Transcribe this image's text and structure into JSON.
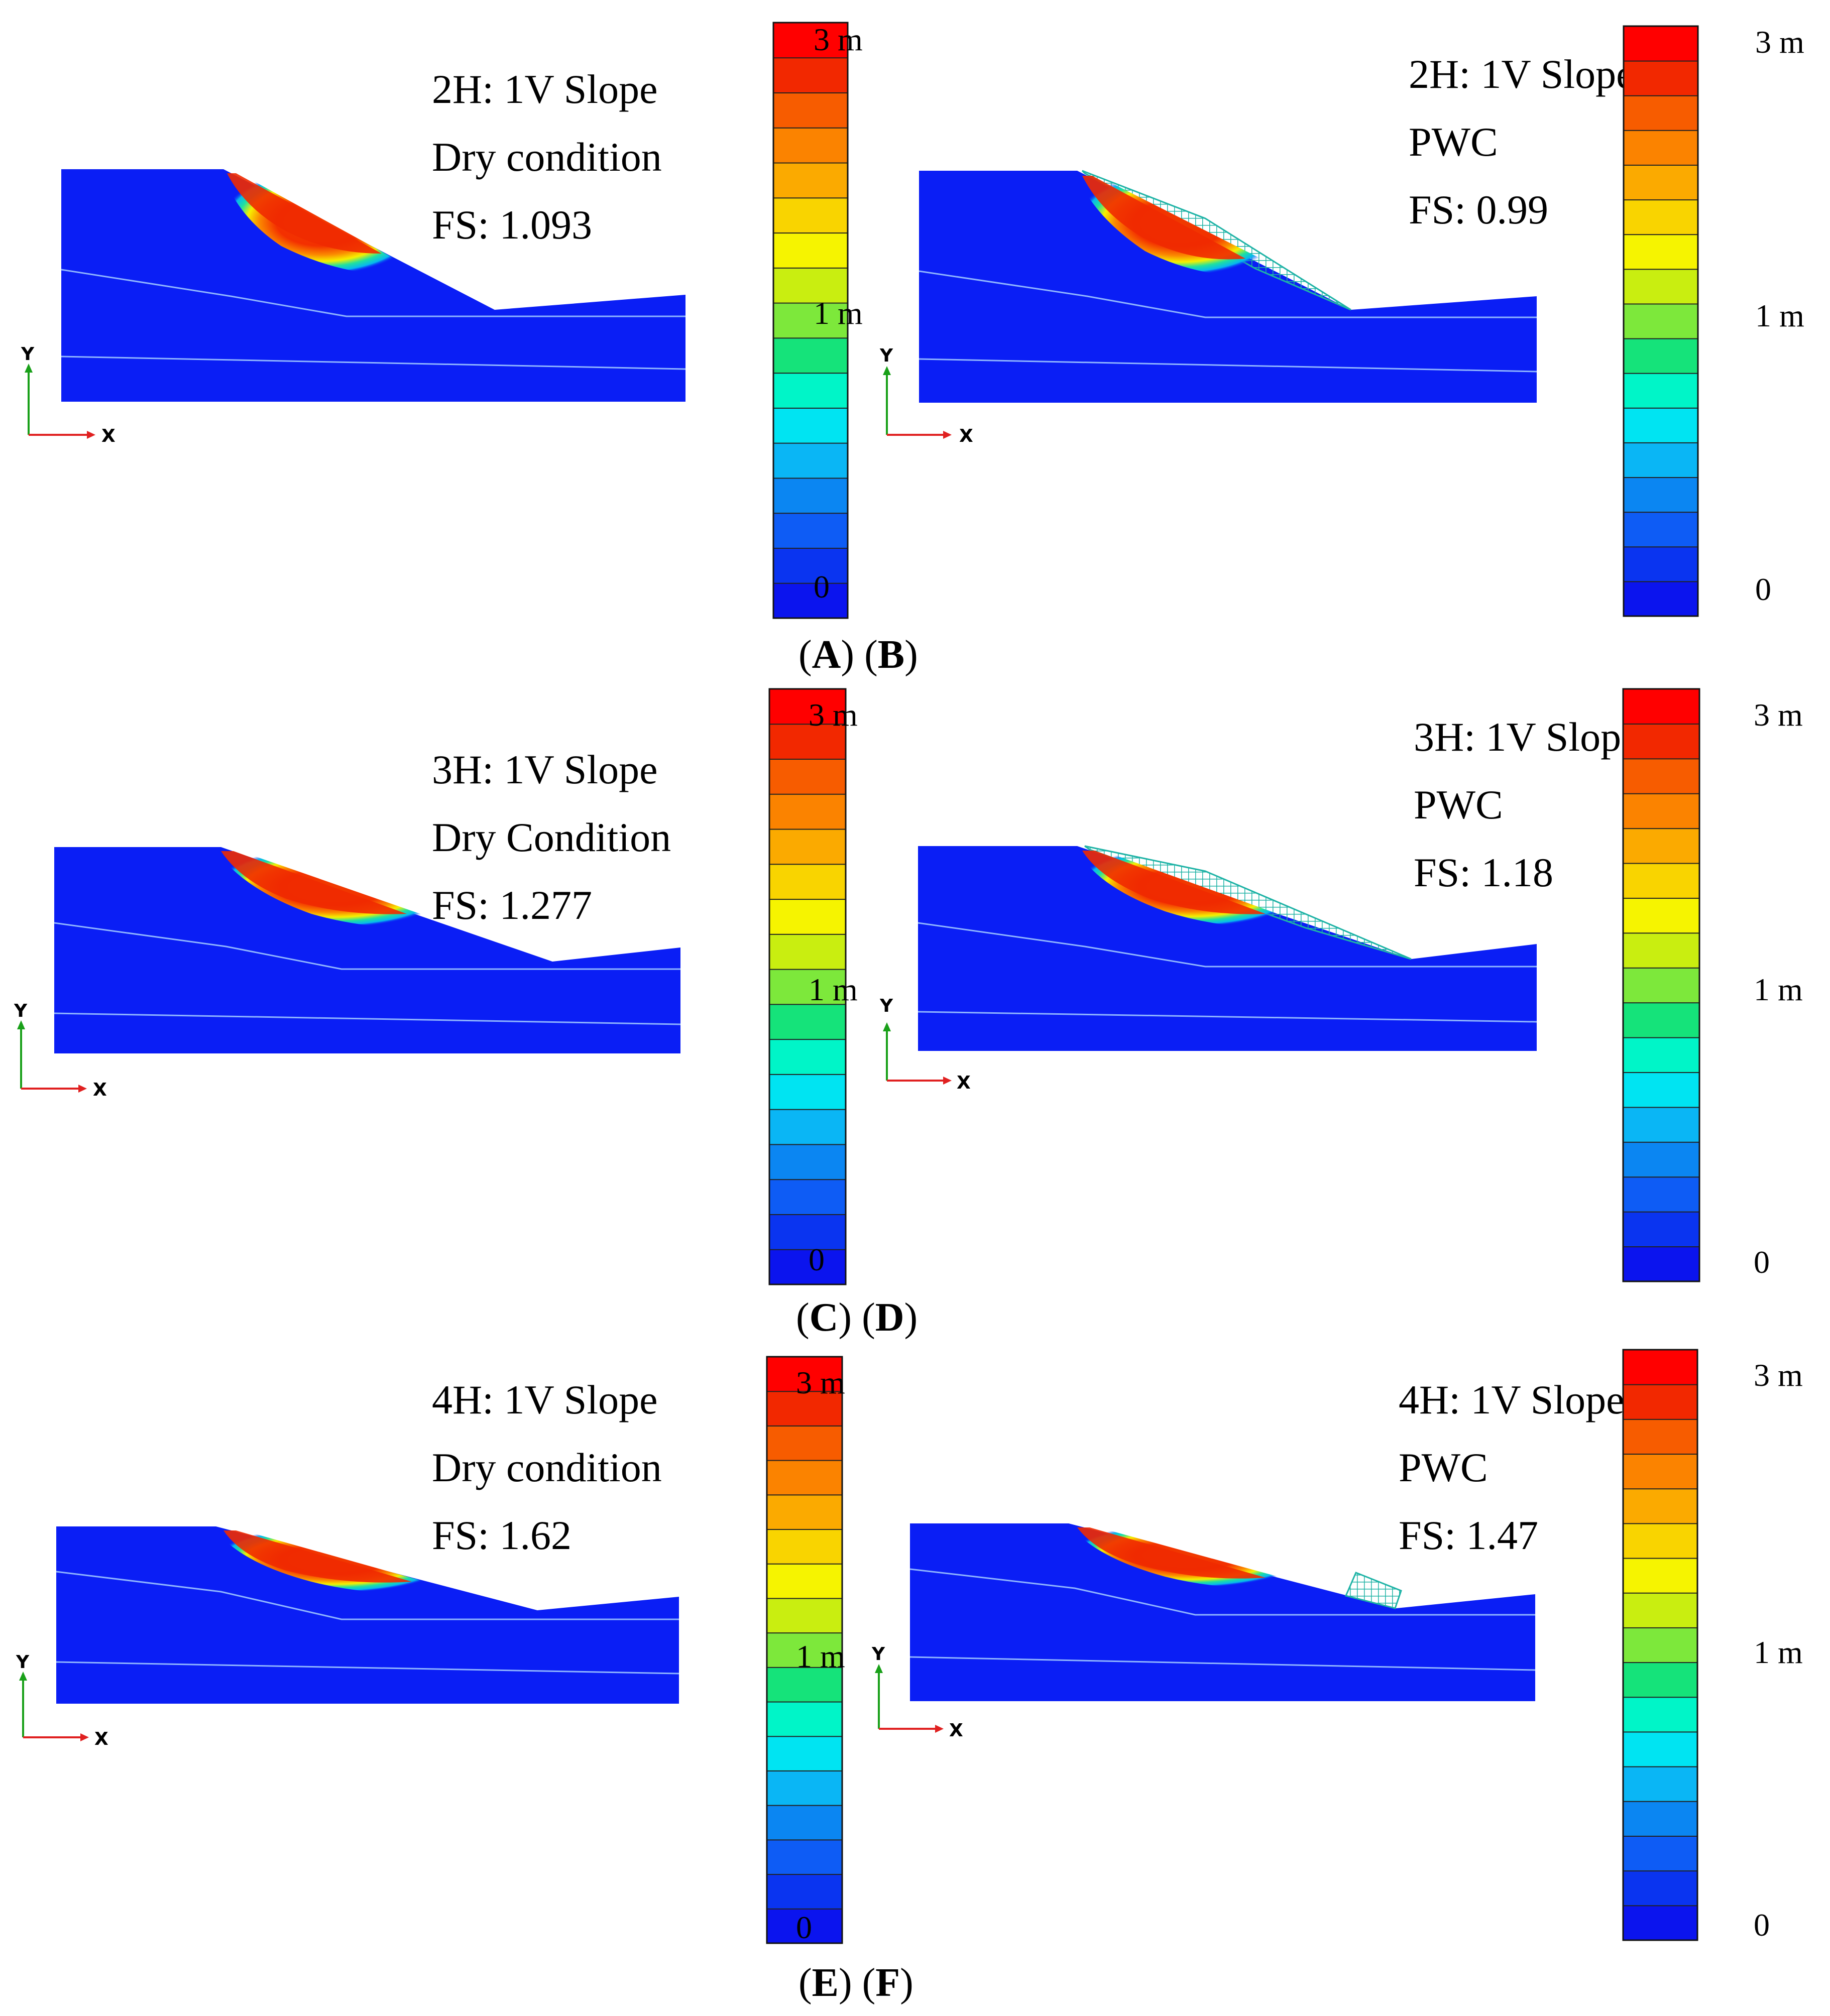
{
  "figure_caption": {
    "row1": {
      "open1": "(",
      "left": "A",
      "mid": ") (",
      "right": "B",
      "close": ")"
    },
    "row2": {
      "open1": "(",
      "left": "C",
      "mid": ") (",
      "right": "D",
      "close": ")"
    },
    "row3": {
      "open1": "(",
      "left": "E",
      "mid": ") (",
      "right": "F",
      "close": ")"
    }
  },
  "axis": {
    "y_label": "Y",
    "x_label": "X"
  },
  "colors": {
    "soil": "#0a1ef5",
    "layer_line": "#8fb5ff",
    "hatch": "#1fb3a6",
    "scale": [
      "#0b14ee",
      "#0a34f0",
      "#0e5cf5",
      "#0b86f2",
      "#0ab6f5",
      "#00e4f2",
      "#00f5c8",
      "#15e37a",
      "#7de83b",
      "#c9ee10",
      "#f6f400",
      "#f9d400",
      "#fbaa00",
      "#fb8300",
      "#f75c00",
      "#f22800",
      "#ff0000"
    ]
  },
  "panels": [
    {
      "id": "A",
      "slope": "2H: 1V Slope",
      "condition": "Dry condition",
      "fs": "FS: 1.093",
      "scale_top": "3 m",
      "scale_mid": "1 m",
      "scale_bot": "0"
    },
    {
      "id": "B",
      "slope": "2H: 1V Slope",
      "condition": "PWC",
      "fs": "FS: 0.99",
      "scale_top": "3 m",
      "scale_mid": "1 m",
      "scale_bot": "0"
    },
    {
      "id": "C",
      "slope": "3H: 1V Slope",
      "condition": "Dry Condition",
      "fs": "FS: 1.277",
      "scale_top": "3 m",
      "scale_mid": "1 m",
      "scale_bot": "0"
    },
    {
      "id": "D",
      "slope": "3H: 1V Slope",
      "condition": "PWC",
      "fs": "FS: 1.18",
      "scale_top": "3 m",
      "scale_mid": "1 m",
      "scale_bot": "0"
    },
    {
      "id": "E",
      "slope": "4H: 1V Slope",
      "condition": "Dry condition",
      "fs": "FS: 1.62",
      "scale_top": "3 m",
      "scale_mid": "1 m",
      "scale_bot": "0"
    },
    {
      "id": "F",
      "slope": "4H: 1V Slope",
      "condition": "PWC",
      "fs": "FS: 1.47",
      "scale_top": "3 m",
      "scale_mid": "1 m",
      "scale_bot": "0"
    }
  ]
}
